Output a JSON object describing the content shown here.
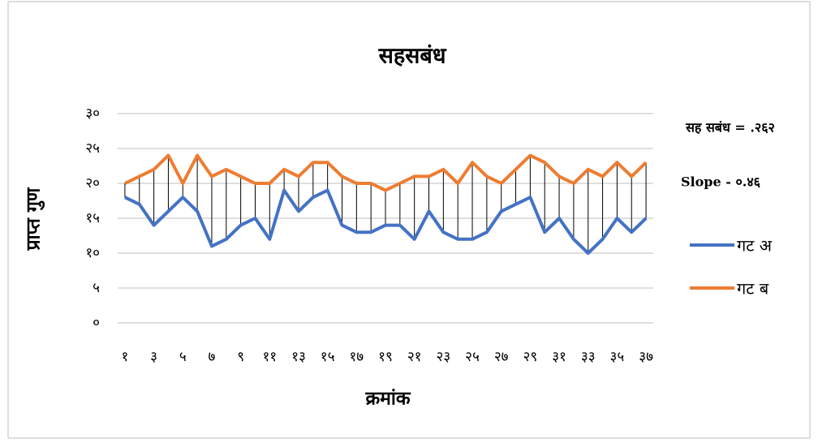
{
  "chart_data": {
    "type": "line",
    "title": "सहसबंध",
    "x_label": "क्रमांक",
    "y_label": "प्राप्त गुण",
    "annotations": [
      "सह सबंध = .२६२",
      "Slope - ०.४६"
    ],
    "categories": [
      "१",
      null,
      "३",
      null,
      "५",
      null,
      "७",
      null,
      "९",
      null,
      "११",
      null,
      "१३",
      null,
      "१५",
      null,
      "१७",
      null,
      "१९",
      null,
      "२१",
      null,
      "२३",
      null,
      "२५",
      null,
      "२७",
      null,
      "२९",
      null,
      "३१",
      null,
      "३३",
      null,
      "३५",
      null,
      "३७"
    ],
    "series": [
      {
        "name": "गट अ",
        "color": "#4472c4",
        "values": [
          18,
          17,
          14,
          16,
          18,
          16,
          11,
          12,
          14,
          15,
          12,
          19,
          16,
          18,
          19,
          14,
          13,
          13,
          14,
          14,
          12,
          16,
          13,
          12,
          12,
          13,
          16,
          17,
          18,
          13,
          15,
          12,
          10,
          12,
          15,
          13,
          15
        ]
      },
      {
        "name": "गट ब",
        "color": "#ed7d31",
        "values": [
          20,
          21,
          22,
          24,
          20,
          24,
          21,
          22,
          21,
          20,
          20,
          22,
          21,
          23,
          23,
          21,
          20,
          20,
          19,
          20,
          21,
          21,
          22,
          20,
          23,
          21,
          20,
          22,
          24,
          23,
          21,
          20,
          22,
          21,
          23,
          21,
          23
        ]
      }
    ],
    "drop_lines": true,
    "ylim": [
      0,
      30
    ],
    "yticks": [
      {
        "value": 0,
        "label": "०"
      },
      {
        "value": 5,
        "label": "५"
      },
      {
        "value": 10,
        "label": "१०"
      },
      {
        "value": 15,
        "label": "१५"
      },
      {
        "value": 20,
        "label": "२०"
      },
      {
        "value": 25,
        "label": "२५"
      },
      {
        "value": 30,
        "label": "३०"
      }
    ],
    "grid": true,
    "legend": "right"
  }
}
